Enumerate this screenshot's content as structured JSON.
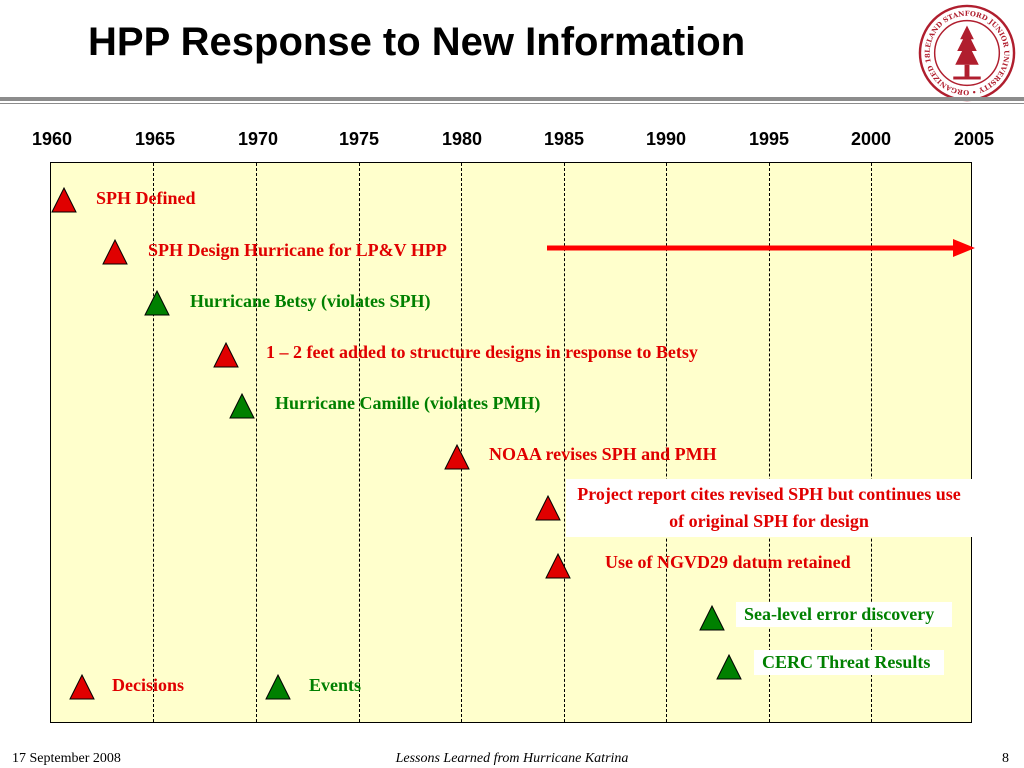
{
  "title": "HPP Response to New Information",
  "seal": {
    "name": "stanford-seal-icon",
    "text": "LELAND STANFORD JUNIOR UNIVERSITY • ORGANIZED 1891 •",
    "color": "#b01e2e"
  },
  "timeline": {
    "years": [
      "1960",
      "1965",
      "1970",
      "1975",
      "1980",
      "1985",
      "1990",
      "1995",
      "2000",
      "2005"
    ]
  },
  "entries": [
    {
      "id": "sph-defined",
      "text": "SPH Defined",
      "type": "decision"
    },
    {
      "id": "sph-design-hurricane",
      "text": "SPH Design Hurricane  for LP&V HPP",
      "type": "decision"
    },
    {
      "id": "hurricane-betsy",
      "text": "Hurricane Betsy (violates SPH)",
      "type": "event"
    },
    {
      "id": "feet-added",
      "text": "1 – 2 feet added to structure designs in response to Betsy",
      "type": "decision"
    },
    {
      "id": "hurricane-camille",
      "text": "Hurricane Camille (violates PMH)",
      "type": "event"
    },
    {
      "id": "noaa-revises",
      "text": "NOAA revises SPH and PMH",
      "type": "decision"
    },
    {
      "id": "project-report",
      "text": "Project report cites revised SPH but continues use of original SPH for design",
      "type": "decision"
    },
    {
      "id": "ngvd29",
      "text": "Use of NGVD29 datum retained",
      "type": "decision"
    },
    {
      "id": "sea-level-error",
      "text": "Sea-level error discovery",
      "type": "event"
    },
    {
      "id": "cerc-threat",
      "text": "CERC Threat Results",
      "type": "event"
    }
  ],
  "legend": {
    "decisions": "Decisions",
    "events": "Events"
  },
  "colors": {
    "decision": "#e00000",
    "event": "#008000",
    "chart_background": "#ffffcc",
    "arrow": "#ff0000"
  },
  "footer": {
    "date": "17 September 2008",
    "center": "Lessons Learned from Hurricane Katrina",
    "page": "8"
  }
}
